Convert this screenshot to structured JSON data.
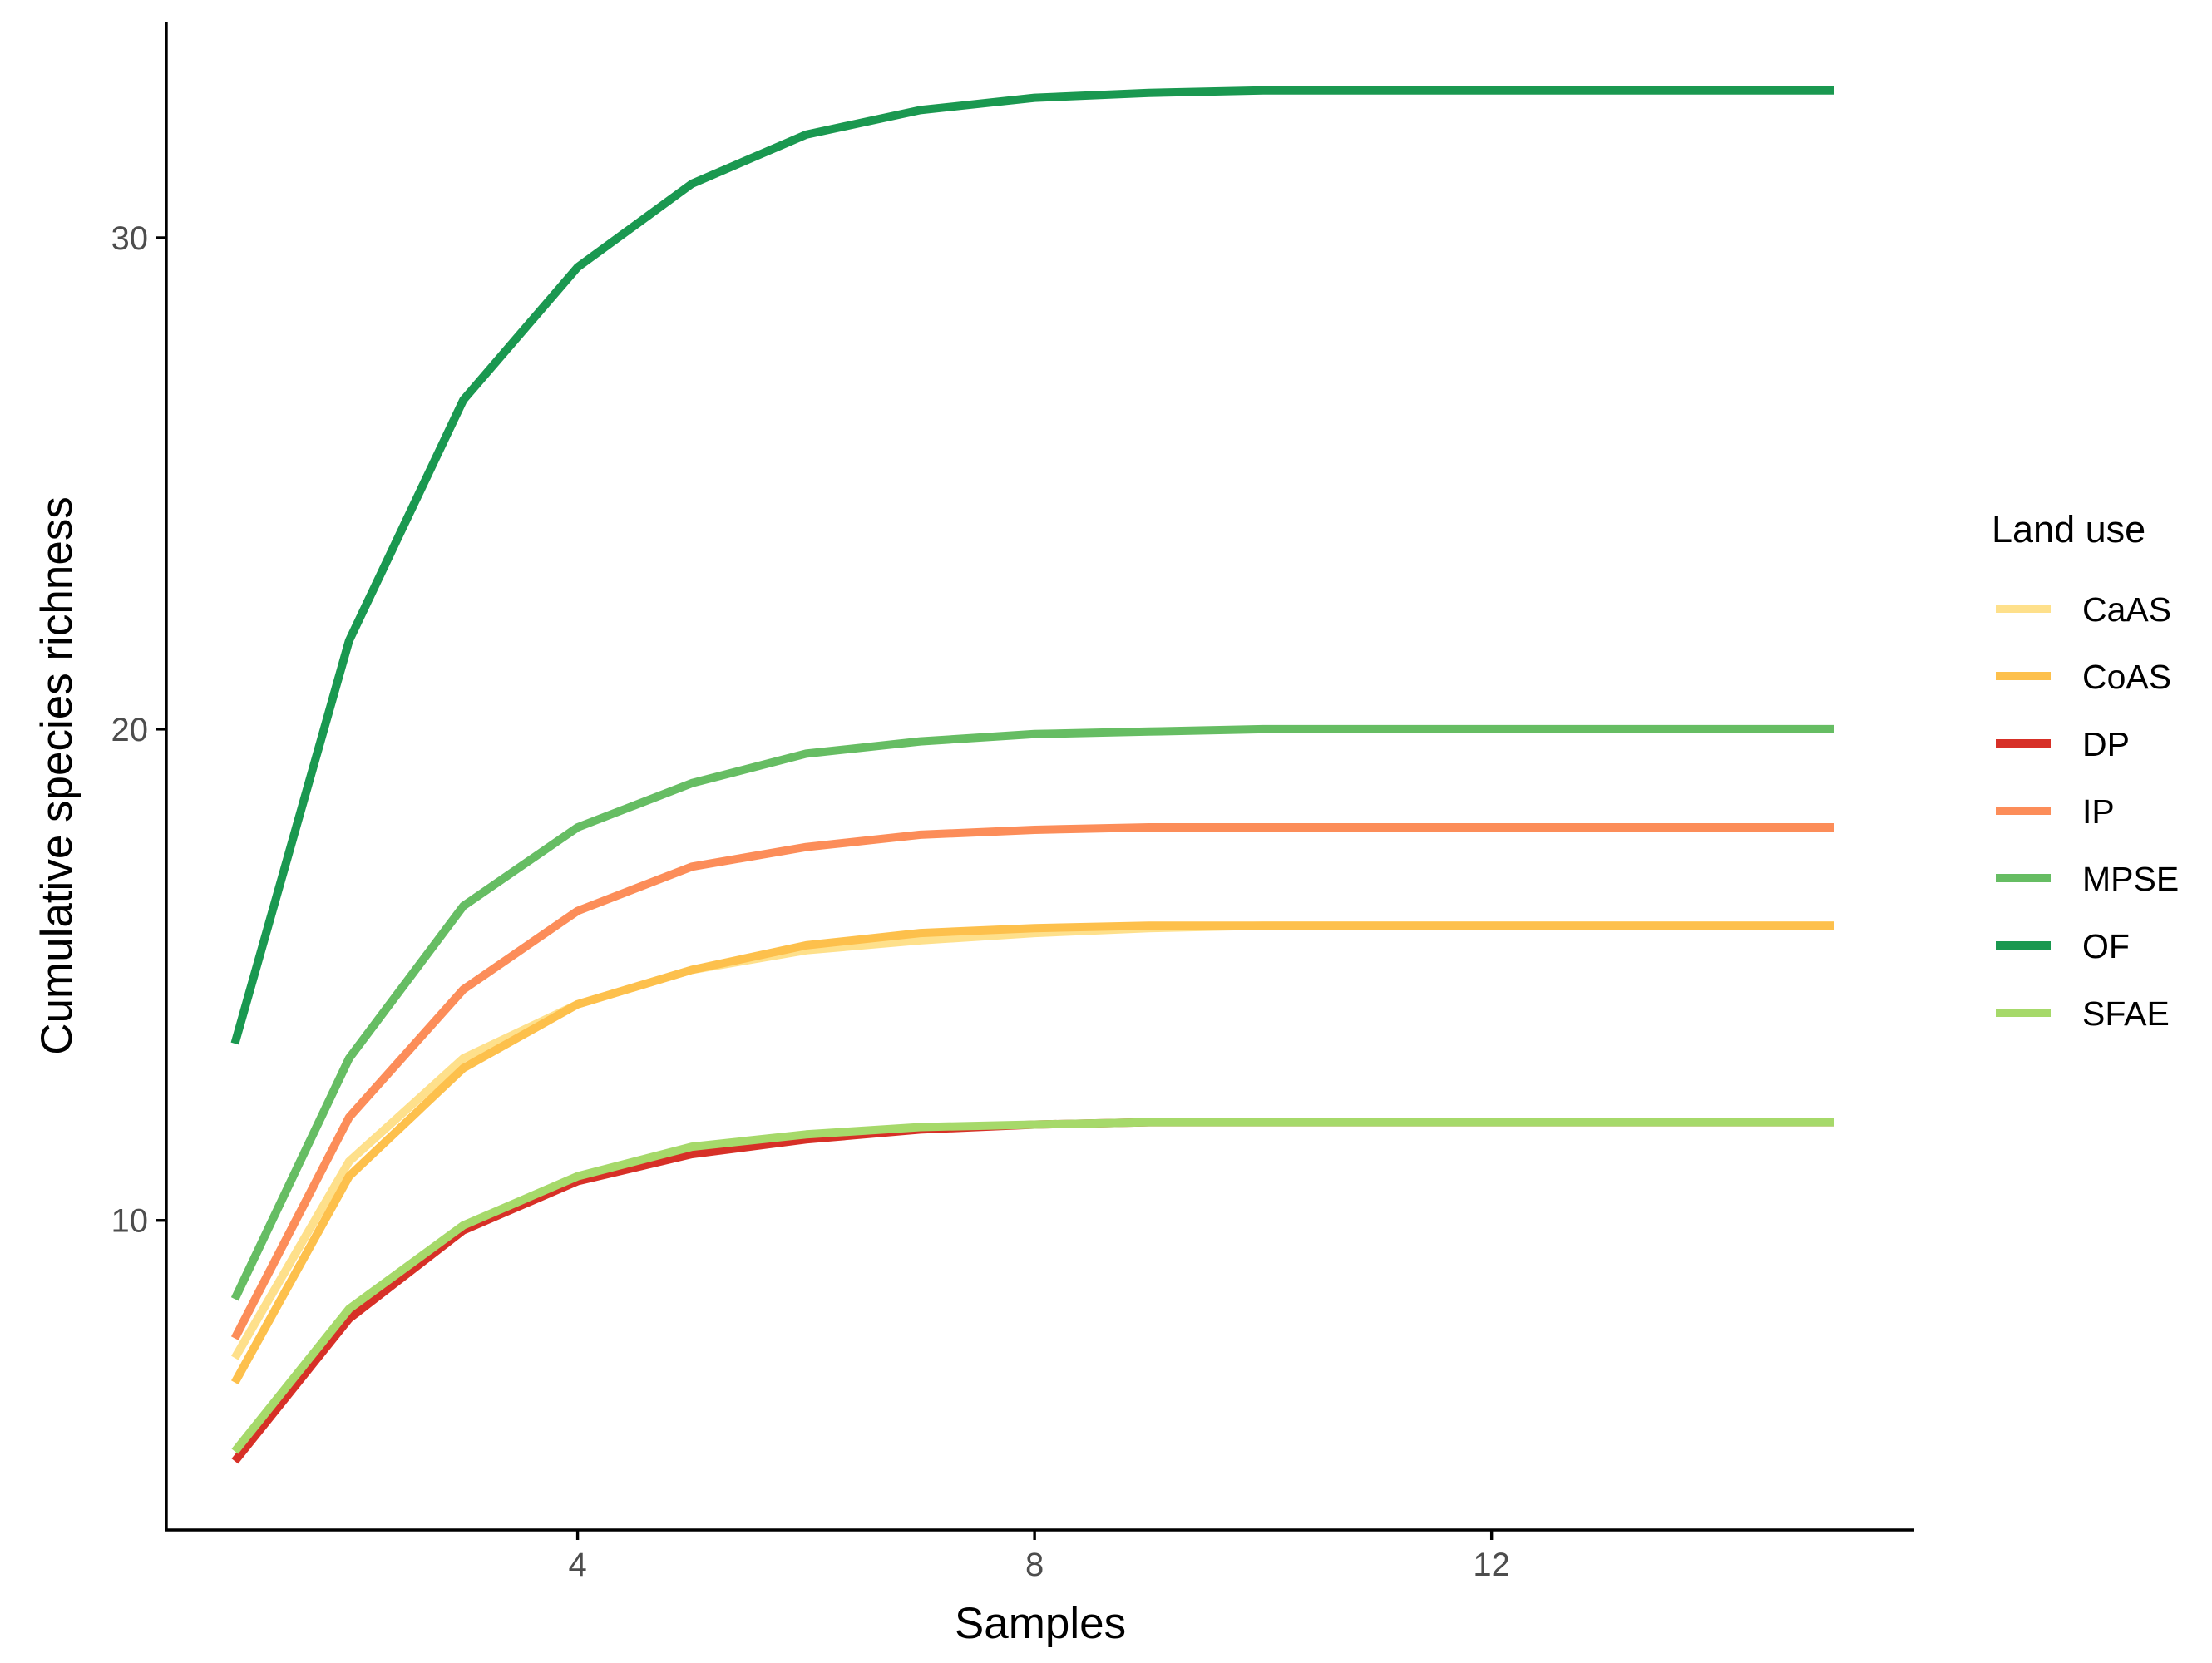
{
  "chart_data": {
    "type": "line",
    "title": "",
    "xlabel": "Samples",
    "ylabel": "Cumulative species richness",
    "xlim": [
      0.4,
      15.7
    ],
    "ylim": [
      3.7,
      34.4
    ],
    "x_ticks": [
      4,
      8,
      12
    ],
    "y_ticks": [
      10,
      20,
      30
    ],
    "grid": false,
    "legend": {
      "title": "Land use",
      "position": "right"
    },
    "x": [
      1,
      2,
      3,
      4,
      5,
      6,
      7,
      8,
      9,
      10,
      11,
      12,
      13,
      14,
      15
    ],
    "series": [
      {
        "name": "CaAS",
        "color": "#fee08b",
        "values": [
          7.2,
          11.2,
          13.3,
          14.4,
          15.1,
          15.5,
          15.7,
          15.85,
          15.95,
          16.0,
          16.0,
          16.0,
          16.0,
          16.0,
          16.0
        ]
      },
      {
        "name": "CoAS",
        "color": "#fdc04c",
        "values": [
          6.7,
          10.9,
          13.1,
          14.4,
          15.1,
          15.6,
          15.85,
          15.95,
          16.0,
          16.0,
          16.0,
          16.0,
          16.0,
          16.0,
          16.0
        ]
      },
      {
        "name": "DP",
        "color": "#d73027",
        "values": [
          5.1,
          8.0,
          9.8,
          10.8,
          11.35,
          11.65,
          11.85,
          11.95,
          12.0,
          12.0,
          12.0,
          12.0,
          12.0,
          12.0,
          12.0
        ]
      },
      {
        "name": "IP",
        "color": "#fc8d59",
        "values": [
          7.6,
          12.1,
          14.7,
          16.3,
          17.2,
          17.6,
          17.85,
          17.95,
          18.0,
          18.0,
          18.0,
          18.0,
          18.0,
          18.0,
          18.0
        ]
      },
      {
        "name": "MPSE",
        "color": "#66bd63",
        "values": [
          8.4,
          13.3,
          16.4,
          18.0,
          18.9,
          19.5,
          19.75,
          19.9,
          19.95,
          20.0,
          20.0,
          20.0,
          20.0,
          20.0,
          20.0
        ]
      },
      {
        "name": "OF",
        "color": "#1a9850",
        "values": [
          13.6,
          21.8,
          26.7,
          29.4,
          31.1,
          32.1,
          32.6,
          32.85,
          32.95,
          33.0,
          33.0,
          33.0,
          33.0,
          33.0,
          33.0
        ]
      },
      {
        "name": "SFAE",
        "color": "#a6d96a",
        "values": [
          5.3,
          8.2,
          9.9,
          10.9,
          11.5,
          11.75,
          11.9,
          11.95,
          12.0,
          12.0,
          12.0,
          12.0,
          12.0,
          12.0,
          12.0
        ]
      }
    ]
  }
}
